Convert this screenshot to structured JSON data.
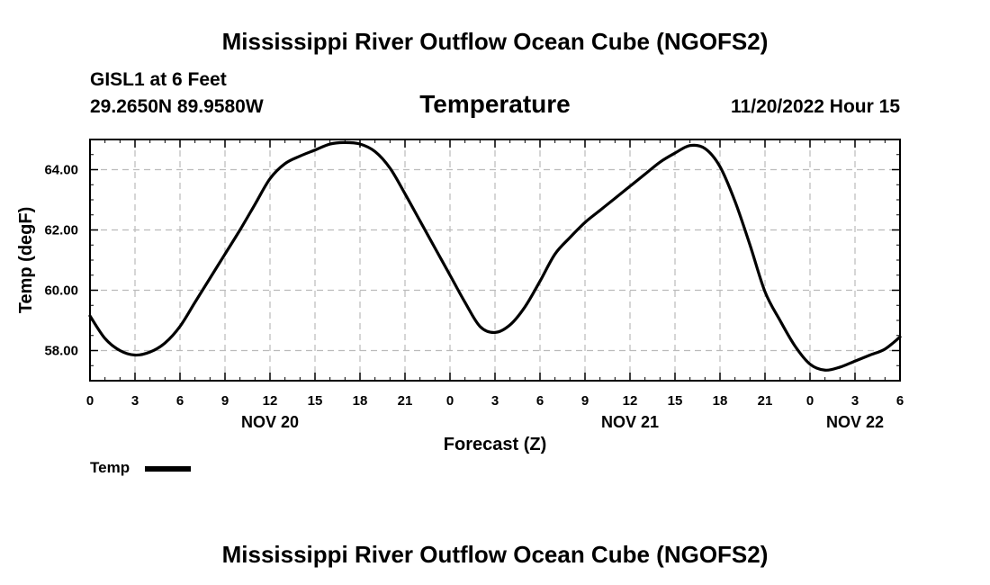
{
  "header": {
    "title": "Mississippi River Outflow Ocean Cube (NGOFS2)",
    "station": "GISL1 at 6 Feet",
    "coords": "29.2650N  89.9580W",
    "chart_title": "Temperature",
    "timestamp": "11/20/2022 Hour 15"
  },
  "footer": {
    "title": "Mississippi River Outflow Ocean Cube (NGOFS2)"
  },
  "legend": {
    "label": "Temp",
    "placement": "bottom-left"
  },
  "chart_data": {
    "type": "line",
    "title": "Temperature",
    "xlabel": "Forecast (Z)",
    "ylabel": "Temp (degF)",
    "xlim": [
      0,
      54
    ],
    "ylim": [
      57,
      65
    ],
    "grid": true,
    "x_ticks": [
      0,
      3,
      6,
      9,
      12,
      15,
      18,
      21,
      24,
      27,
      30,
      33,
      36,
      39,
      42,
      45,
      48,
      51,
      54
    ],
    "x_tick_labels": [
      "0",
      "3",
      "6",
      "9",
      "12",
      "15",
      "18",
      "21",
      "0",
      "3",
      "6",
      "9",
      "12",
      "15",
      "18",
      "21",
      "0",
      "3",
      "6"
    ],
    "y_ticks": [
      58,
      60,
      62,
      64
    ],
    "y_tick_labels": [
      "58.00",
      "60.00",
      "62.00",
      "64.00"
    ],
    "date_labels": [
      {
        "label": "NOV 20",
        "x": 12
      },
      {
        "label": "NOV 21",
        "x": 36
      },
      {
        "label": "NOV 22",
        "x": 51
      }
    ],
    "series": [
      {
        "name": "Temp",
        "color": "#000000",
        "x": [
          0,
          1,
          2,
          3,
          4,
          5,
          6,
          7,
          8,
          9,
          10,
          11,
          12,
          13,
          14,
          15,
          16,
          17,
          18,
          19,
          20,
          21,
          22,
          23,
          24,
          25,
          26,
          27,
          28,
          29,
          30,
          31,
          32,
          33,
          34,
          35,
          36,
          37,
          38,
          39,
          40,
          41,
          42,
          43,
          44,
          45,
          46,
          47,
          48,
          49,
          50,
          51,
          52,
          53,
          54
        ],
        "values": [
          59.15,
          58.4,
          58.0,
          57.85,
          57.95,
          58.25,
          58.8,
          59.6,
          60.4,
          61.2,
          62.0,
          62.85,
          63.7,
          64.2,
          64.45,
          64.65,
          64.85,
          64.9,
          64.85,
          64.6,
          64.05,
          63.2,
          62.3,
          61.4,
          60.5,
          59.6,
          58.8,
          58.6,
          58.85,
          59.45,
          60.3,
          61.2,
          61.75,
          62.25,
          62.65,
          63.05,
          63.45,
          63.85,
          64.25,
          64.55,
          64.8,
          64.7,
          64.1,
          62.95,
          61.5,
          59.95,
          59.0,
          58.15,
          57.55,
          57.35,
          57.45,
          57.65,
          57.85,
          58.05,
          58.45
        ]
      }
    ]
  }
}
